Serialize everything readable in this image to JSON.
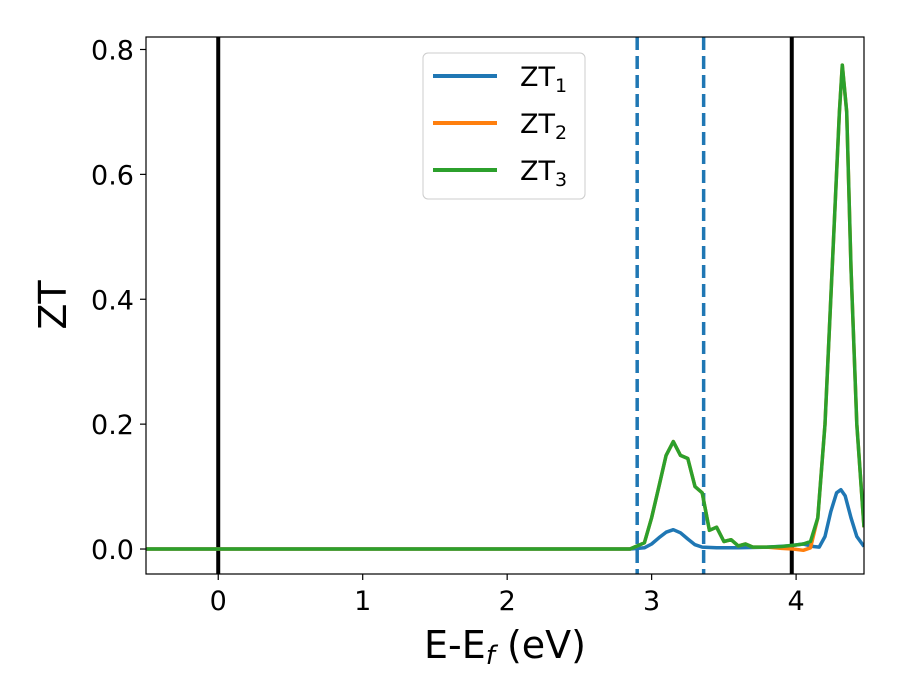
{
  "chart_data": {
    "type": "line",
    "xlabel": "E-E",
    "xlabel_sub": "f",
    "xlabel_unit": " (eV)",
    "ylabel": "ZT",
    "xlim": [
      -0.5,
      4.47
    ],
    "ylim": [
      -0.04,
      0.82
    ],
    "xticks": [
      0,
      1,
      2,
      3,
      4
    ],
    "xtick_labels": [
      "0",
      "1",
      "2",
      "3",
      "4"
    ],
    "yticks": [
      0.0,
      0.2,
      0.4,
      0.6,
      0.8
    ],
    "ytick_labels": [
      "0.0",
      "0.2",
      "0.4",
      "0.6",
      "0.8"
    ],
    "grid": false,
    "legend_position": "top-center",
    "vlines": [
      {
        "x": 0.0,
        "style": "solid",
        "color": "#000000"
      },
      {
        "x": 3.97,
        "style": "solid",
        "color": "#000000"
      },
      {
        "x": 2.9,
        "style": "dashed",
        "color": "#1f77b4"
      },
      {
        "x": 3.36,
        "style": "dashed",
        "color": "#1f77b4"
      }
    ],
    "series": [
      {
        "name": "ZT",
        "sub": "1",
        "color": "#1f77b4",
        "x": [
          -0.5,
          2.85,
          2.95,
          3.0,
          3.05,
          3.1,
          3.15,
          3.2,
          3.25,
          3.3,
          3.35,
          3.45,
          3.6,
          3.8,
          3.95,
          4.05,
          4.12,
          4.16,
          4.2,
          4.24,
          4.28,
          4.31,
          4.34,
          4.38,
          4.42,
          4.47
        ],
        "y": [
          0.0,
          0.0,
          0.002,
          0.008,
          0.018,
          0.027,
          0.031,
          0.026,
          0.016,
          0.007,
          0.003,
          0.002,
          0.002,
          0.003,
          0.005,
          0.008,
          0.004,
          0.003,
          0.02,
          0.06,
          0.09,
          0.095,
          0.085,
          0.05,
          0.02,
          0.004
        ]
      },
      {
        "name": "ZT",
        "sub": "2",
        "color": "#ff7f0e",
        "x": [
          -0.5,
          2.85,
          2.95,
          3.0,
          3.05,
          3.1,
          3.15,
          3.2,
          3.25,
          3.3,
          3.35,
          3.4,
          3.45,
          3.5,
          3.55,
          3.6,
          3.65,
          3.7,
          3.8,
          3.9,
          3.98,
          4.05,
          4.1,
          4.15,
          4.2,
          4.25,
          4.3,
          4.32,
          4.35,
          4.38,
          4.42,
          4.47
        ],
        "y": [
          0.0,
          0.0,
          0.01,
          0.05,
          0.1,
          0.15,
          0.172,
          0.15,
          0.145,
          0.1,
          0.09,
          0.03,
          0.035,
          0.012,
          0.015,
          0.005,
          0.008,
          0.003,
          0.003,
          0.001,
          0.0,
          -0.002,
          0.002,
          0.05,
          0.2,
          0.45,
          0.7,
          0.775,
          0.7,
          0.45,
          0.2,
          0.035
        ]
      },
      {
        "name": "ZT",
        "sub": "3",
        "color": "#2ca02c",
        "x": [
          -0.5,
          2.85,
          2.95,
          3.0,
          3.05,
          3.1,
          3.15,
          3.2,
          3.25,
          3.3,
          3.35,
          3.4,
          3.45,
          3.5,
          3.55,
          3.6,
          3.65,
          3.7,
          3.8,
          3.9,
          3.98,
          4.05,
          4.1,
          4.15,
          4.2,
          4.25,
          4.3,
          4.32,
          4.35,
          4.38,
          4.42,
          4.47
        ],
        "y": [
          0.0,
          0.0,
          0.01,
          0.05,
          0.1,
          0.15,
          0.172,
          0.15,
          0.145,
          0.1,
          0.09,
          0.03,
          0.035,
          0.012,
          0.015,
          0.005,
          0.008,
          0.003,
          0.003,
          0.004,
          0.006,
          0.008,
          0.012,
          0.05,
          0.2,
          0.45,
          0.7,
          0.775,
          0.7,
          0.45,
          0.2,
          0.035
        ]
      }
    ]
  }
}
